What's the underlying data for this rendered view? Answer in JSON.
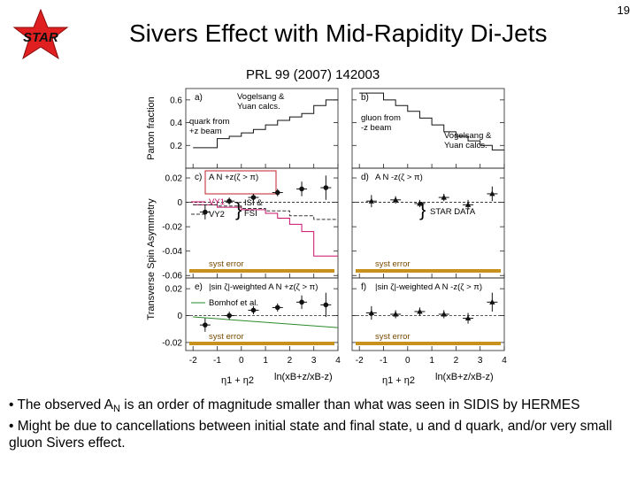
{
  "slide": {
    "number": "19",
    "title": "Sivers Effect with Mid-Rapidity Di-Jets",
    "citation": "PRL   99 (2007) 142003",
    "logo_text": "STAR",
    "colors": {
      "logo_star": "#e02020",
      "model_vy1": "#c8106a",
      "syst_band": "#c8901c",
      "bornhoft": "#2a8a2a"
    }
  },
  "bullets": [
    {
      "pre": "• The observed A",
      "sub": "N",
      "post": " is an order of magnitude smaller than what was seen in SIDIS by HERMES"
    },
    {
      "pre": "• Might be due to cancellations between initial state and final state, u and d quark, and/or very small gluon Sivers effect.",
      "sub": "",
      "post": ""
    }
  ],
  "chart_data": {
    "type": "multi-panel scatter with step curves",
    "x_tick_labels": [
      "-2",
      "-1",
      "0",
      "1",
      "2",
      "3",
      "4"
    ],
    "xlim": [
      -2.3,
      4.0
    ],
    "x_labels": {
      "left": "η1 + η2",
      "right": "ln(x_B^{+z}/x_B^{-z})"
    },
    "y_axis_groups": {
      "top": "Parton fraction",
      "bottom": "Transverse Spin Asymmetry"
    },
    "rows": [
      {
        "id": "fraction",
        "ylim": [
          0.0,
          0.7
        ],
        "y_ticks": [
          "0.6",
          "0.4",
          "0.2"
        ],
        "y_tick_values": [
          0.6,
          0.4,
          0.2
        ],
        "panels": [
          {
            "letter": "a)",
            "text": [
              "Vogelsang &",
              "Yuan calcs."
            ],
            "note": [
              "quark from",
              "+z beam"
            ],
            "step_x": [
              -2.0,
              -1.0,
              -0.5,
              0.0,
              0.5,
              1.0,
              1.5,
              2.0,
              2.5,
              3.0,
              3.5,
              4.0
            ],
            "step_y": [
              0.18,
              0.26,
              0.28,
              0.31,
              0.34,
              0.38,
              0.42,
              0.45,
              0.48,
              0.55,
              0.6
            ]
          },
          {
            "letter": "b)",
            "text": [
              "Vogelsang &",
              "Yuan calcs."
            ],
            "note": [
              "gluon from",
              "-z beam"
            ],
            "step_x": [
              -2.0,
              -1.0,
              -0.5,
              0.0,
              0.5,
              1.0,
              1.5,
              2.0,
              2.5,
              3.0,
              3.5,
              4.0
            ],
            "step_y": [
              0.66,
              0.6,
              0.55,
              0.5,
              0.44,
              0.38,
              0.32,
              0.28,
              0.24,
              0.2,
              0.16
            ]
          }
        ]
      },
      {
        "id": "asym1",
        "ylim": [
          -0.062,
          0.028
        ],
        "y_ticks": [
          "0.02",
          "0",
          "-0.02",
          "-0.04",
          "-0.06"
        ],
        "y_tick_values": [
          0.02,
          0.0,
          -0.02,
          -0.04,
          -0.06
        ],
        "panels": [
          {
            "letter": "c)",
            "label": "A_N^{+z}(ζ > π)",
            "boxed": true,
            "points_x": [
              -1.5,
              -0.5,
              0.5,
              1.5,
              2.5,
              3.5
            ],
            "points_y": [
              -0.008,
              0.001,
              0.004,
              0.008,
              0.011,
              0.012
            ],
            "points_err": [
              0.006,
              0.003,
              0.003,
              0.003,
              0.006,
              0.01
            ],
            "vy1": {
              "name": "VY1",
              "step_x": [
                -2.0,
                -1.0,
                0.0,
                1.0,
                1.5,
                2.0,
                2.5,
                3.0,
                4.0
              ],
              "step_y": [
                -0.002,
                -0.004,
                -0.006,
                -0.009,
                -0.013,
                -0.018,
                -0.024,
                -0.044
              ]
            },
            "vy2": {
              "name": "VY2",
              "step_x": [
                -2.0,
                -1.0,
                0.0,
                1.0,
                2.0,
                3.0,
                4.0
              ],
              "step_y": [
                -0.002,
                -0.003,
                -0.005,
                -0.007,
                -0.011,
                -0.014
              ]
            },
            "legend_note": [
              "ISI &",
              "FSI"
            ],
            "syst_label": "syst error"
          },
          {
            "letter": "d)",
            "label": "A_N^{-z}(ζ > π)",
            "boxed": false,
            "points_x": [
              -1.5,
              -0.5,
              0.5,
              1.5,
              2.5,
              3.5
            ],
            "points_y": [
              0.001,
              0.002,
              -0.001,
              0.004,
              -0.002,
              0.007
            ],
            "points_err": [
              0.005,
              0.003,
              0.003,
              0.003,
              0.004,
              0.006
            ],
            "legend_note": [
              "STAR DATA"
            ],
            "syst_label": "syst error"
          }
        ]
      },
      {
        "id": "asym2",
        "ylim": [
          -0.026,
          0.028
        ],
        "y_ticks": [
          "0.02",
          "0",
          "-0.02"
        ],
        "y_tick_values": [
          0.02,
          0.0,
          -0.02
        ],
        "panels": [
          {
            "letter": "e)",
            "label": "|sin ζ|-weighted A_N^{+z}(ζ > π)",
            "points_x": [
              -1.5,
              -0.5,
              0.5,
              1.5,
              2.5,
              3.5
            ],
            "points_y": [
              -0.007,
              0.0,
              0.004,
              0.006,
              0.01,
              0.008
            ],
            "points_err": [
              0.005,
              0.003,
              0.003,
              0.003,
              0.005,
              0.009
            ],
            "bornhoft": {
              "name": "Bomhof et al.",
              "x": [
                -2.0,
                4.0
              ],
              "y": [
                -0.001,
                -0.009
              ]
            },
            "syst_label": "syst error"
          },
          {
            "letter": "f)",
            "label": "|sin ζ|-weighted A_N^{-z}(ζ > π)",
            "points_x": [
              -1.5,
              -0.5,
              0.5,
              1.5,
              2.5,
              3.5
            ],
            "points_y": [
              0.002,
              0.001,
              0.003,
              0.001,
              -0.002,
              0.01
            ],
            "points_err": [
              0.005,
              0.003,
              0.003,
              0.003,
              0.004,
              0.007
            ],
            "syst_label": "syst error"
          }
        ]
      }
    ]
  }
}
